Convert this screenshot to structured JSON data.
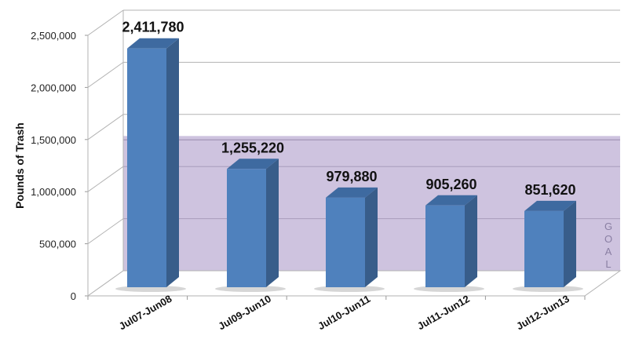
{
  "chart_data": {
    "type": "bar",
    "title": "",
    "xlabel": "",
    "ylabel": "Pounds of Trash",
    "categories": [
      "Jul07-Jun08",
      "Jul09-Jun10",
      "Jul10-Jun11",
      "Jul11-Jun12",
      "Jul12-Jun13"
    ],
    "values": [
      2411780,
      1255220,
      979880,
      905260,
      851620
    ],
    "value_labels": [
      "2,411,780",
      "1,255,220",
      "979,880",
      "905,260",
      "851,620"
    ],
    "ylim": [
      0,
      2500000
    ],
    "yticks": [
      0,
      500000,
      1000000,
      1500000,
      2000000,
      2500000
    ],
    "ytick_labels": [
      "0",
      "500,000",
      "1,000,000",
      "1,500,000",
      "2,000,000",
      "2,500,000"
    ],
    "grid": true,
    "style": "3d-column",
    "annotations": [
      {
        "type": "band",
        "label": "GOAL",
        "from": 0,
        "to": 1255220,
        "color": "#c9bedc"
      }
    ],
    "colors": {
      "bar_front": "#4f81bd",
      "bar_side": "#385d8a",
      "bar_top": "#3e6aa0",
      "goal_band": "#cbc0dd",
      "goal_text": "#8a7fa3",
      "grid": "#b3b3b3"
    }
  }
}
